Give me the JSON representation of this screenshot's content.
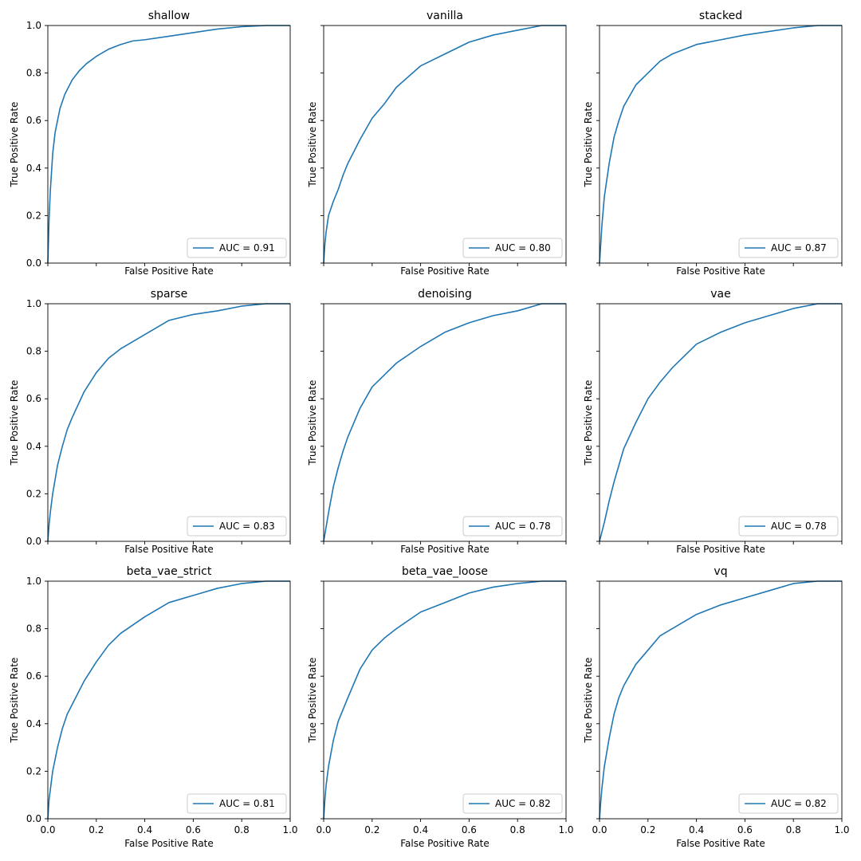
{
  "chart_data": [
    {
      "type": "line",
      "title": "shallow",
      "xlabel": "False Positive Rate",
      "ylabel": "True Positive Rate",
      "xlim": [
        0,
        1
      ],
      "ylim": [
        0,
        1
      ],
      "grid": false,
      "legend_position": "lower-right",
      "series": [
        {
          "name": "AUC = 0.91",
          "color": "#1f77b4",
          "x": [
            0,
            0.005,
            0.01,
            0.02,
            0.03,
            0.05,
            0.07,
            0.1,
            0.13,
            0.16,
            0.2,
            0.25,
            0.3,
            0.35,
            0.4,
            0.5,
            0.6,
            0.7,
            0.8,
            0.9,
            1.0
          ],
          "y": [
            0,
            0.18,
            0.3,
            0.46,
            0.55,
            0.65,
            0.71,
            0.77,
            0.81,
            0.84,
            0.87,
            0.9,
            0.92,
            0.935,
            0.94,
            0.955,
            0.97,
            0.985,
            0.995,
            1.0,
            1.0
          ]
        }
      ]
    },
    {
      "type": "line",
      "title": "vanilla",
      "xlabel": "False Positive Rate",
      "ylabel": "True Positive Rate",
      "xlim": [
        0,
        1
      ],
      "ylim": [
        0,
        1
      ],
      "grid": false,
      "legend_position": "lower-right",
      "series": [
        {
          "name": "AUC = 0.80",
          "color": "#1f77b4",
          "x": [
            0,
            0.005,
            0.01,
            0.02,
            0.04,
            0.06,
            0.08,
            0.1,
            0.15,
            0.2,
            0.25,
            0.3,
            0.4,
            0.5,
            0.6,
            0.7,
            0.8,
            0.9,
            1.0
          ],
          "y": [
            0,
            0.08,
            0.13,
            0.2,
            0.26,
            0.31,
            0.37,
            0.42,
            0.52,
            0.61,
            0.67,
            0.74,
            0.83,
            0.88,
            0.93,
            0.96,
            0.98,
            1.0,
            1.0
          ]
        }
      ]
    },
    {
      "type": "line",
      "title": "stacked",
      "xlabel": "False Positive Rate",
      "ylabel": "True Positive Rate",
      "xlim": [
        0,
        1
      ],
      "ylim": [
        0,
        1
      ],
      "grid": false,
      "legend_position": "lower-right",
      "series": [
        {
          "name": "AUC = 0.87",
          "color": "#1f77b4",
          "x": [
            0,
            0.005,
            0.01,
            0.02,
            0.04,
            0.06,
            0.08,
            0.1,
            0.15,
            0.2,
            0.25,
            0.3,
            0.4,
            0.5,
            0.6,
            0.7,
            0.8,
            0.9,
            1.0
          ],
          "y": [
            0,
            0.08,
            0.16,
            0.28,
            0.42,
            0.53,
            0.6,
            0.66,
            0.75,
            0.8,
            0.85,
            0.88,
            0.92,
            0.94,
            0.96,
            0.975,
            0.99,
            1.0,
            1.0
          ]
        }
      ]
    },
    {
      "type": "line",
      "title": "sparse",
      "xlabel": "False Positive Rate",
      "ylabel": "True Positive Rate",
      "xlim": [
        0,
        1
      ],
      "ylim": [
        0,
        1
      ],
      "grid": false,
      "legend_position": "lower-right",
      "series": [
        {
          "name": "AUC = 0.83",
          "color": "#1f77b4",
          "x": [
            0,
            0.005,
            0.01,
            0.02,
            0.04,
            0.06,
            0.08,
            0.1,
            0.15,
            0.2,
            0.25,
            0.3,
            0.4,
            0.5,
            0.6,
            0.7,
            0.8,
            0.9,
            1.0
          ],
          "y": [
            0,
            0.07,
            0.12,
            0.2,
            0.32,
            0.4,
            0.47,
            0.52,
            0.63,
            0.71,
            0.77,
            0.81,
            0.87,
            0.93,
            0.955,
            0.97,
            0.99,
            1.0,
            1.0
          ]
        }
      ]
    },
    {
      "type": "line",
      "title": "denoising",
      "xlabel": "False Positive Rate",
      "ylabel": "True Positive Rate",
      "xlim": [
        0,
        1
      ],
      "ylim": [
        0,
        1
      ],
      "grid": false,
      "legend_position": "lower-right",
      "series": [
        {
          "name": "AUC = 0.78",
          "color": "#1f77b4",
          "x": [
            0,
            0.005,
            0.01,
            0.02,
            0.04,
            0.06,
            0.08,
            0.1,
            0.15,
            0.2,
            0.25,
            0.3,
            0.4,
            0.5,
            0.6,
            0.7,
            0.8,
            0.9,
            1.0
          ],
          "y": [
            0,
            0.03,
            0.06,
            0.12,
            0.23,
            0.31,
            0.38,
            0.44,
            0.56,
            0.65,
            0.7,
            0.75,
            0.82,
            0.88,
            0.92,
            0.95,
            0.97,
            1.0,
            1.0
          ]
        }
      ]
    },
    {
      "type": "line",
      "title": "vae",
      "xlabel": "False Positive Rate",
      "ylabel": "True Positive Rate",
      "xlim": [
        0,
        1
      ],
      "ylim": [
        0,
        1
      ],
      "grid": false,
      "legend_position": "lower-right",
      "series": [
        {
          "name": "AUC = 0.78",
          "color": "#1f77b4",
          "x": [
            0,
            0.01,
            0.02,
            0.04,
            0.06,
            0.08,
            0.1,
            0.15,
            0.2,
            0.25,
            0.3,
            0.35,
            0.4,
            0.5,
            0.6,
            0.7,
            0.8,
            0.9,
            1.0
          ],
          "y": [
            0,
            0.04,
            0.08,
            0.17,
            0.25,
            0.32,
            0.39,
            0.5,
            0.6,
            0.67,
            0.73,
            0.78,
            0.83,
            0.88,
            0.92,
            0.95,
            0.98,
            1.0,
            1.0
          ]
        }
      ]
    },
    {
      "type": "line",
      "title": "beta_vae_strict",
      "xlabel": "False Positive Rate",
      "ylabel": "True Positive Rate",
      "xlim": [
        0,
        1
      ],
      "ylim": [
        0,
        1
      ],
      "grid": false,
      "legend_position": "lower-right",
      "series": [
        {
          "name": "AUC = 0.81",
          "color": "#1f77b4",
          "x": [
            0,
            0.005,
            0.01,
            0.02,
            0.04,
            0.06,
            0.08,
            0.1,
            0.15,
            0.2,
            0.25,
            0.3,
            0.4,
            0.5,
            0.6,
            0.7,
            0.8,
            0.9,
            1.0
          ],
          "y": [
            0,
            0.08,
            0.12,
            0.2,
            0.3,
            0.38,
            0.44,
            0.48,
            0.58,
            0.66,
            0.73,
            0.78,
            0.85,
            0.91,
            0.94,
            0.97,
            0.99,
            1.0,
            1.0
          ]
        }
      ]
    },
    {
      "type": "line",
      "title": "beta_vae_loose",
      "xlabel": "False Positive Rate",
      "ylabel": "True Positive Rate",
      "xlim": [
        0,
        1
      ],
      "ylim": [
        0,
        1
      ],
      "grid": false,
      "legend_position": "lower-right",
      "series": [
        {
          "name": "AUC = 0.82",
          "color": "#1f77b4",
          "x": [
            0,
            0.005,
            0.01,
            0.02,
            0.04,
            0.06,
            0.08,
            0.1,
            0.15,
            0.2,
            0.25,
            0.3,
            0.4,
            0.5,
            0.6,
            0.7,
            0.8,
            0.9,
            1.0
          ],
          "y": [
            0,
            0.08,
            0.14,
            0.22,
            0.33,
            0.41,
            0.46,
            0.51,
            0.63,
            0.71,
            0.76,
            0.8,
            0.87,
            0.91,
            0.95,
            0.975,
            0.99,
            1.0,
            1.0
          ]
        }
      ]
    },
    {
      "type": "line",
      "title": "vq",
      "xlabel": "False Positive Rate",
      "ylabel": "True Positive Rate",
      "xlim": [
        0,
        1
      ],
      "ylim": [
        0,
        1
      ],
      "grid": false,
      "legend_position": "lower-right",
      "series": [
        {
          "name": "AUC = 0.82",
          "color": "#1f77b4",
          "x": [
            0,
            0.005,
            0.01,
            0.02,
            0.04,
            0.06,
            0.08,
            0.1,
            0.15,
            0.2,
            0.25,
            0.3,
            0.4,
            0.5,
            0.6,
            0.7,
            0.8,
            0.9,
            1.0
          ],
          "y": [
            0,
            0.07,
            0.13,
            0.22,
            0.34,
            0.44,
            0.51,
            0.56,
            0.65,
            0.71,
            0.77,
            0.8,
            0.86,
            0.9,
            0.93,
            0.96,
            0.99,
            1.0,
            1.0
          ]
        }
      ]
    }
  ],
  "ticks": {
    "x": [
      "0.0",
      "0.2",
      "0.4",
      "0.6",
      "0.8",
      "1.0"
    ],
    "y": [
      "0.0",
      "0.2",
      "0.4",
      "0.6",
      "0.8",
      "1.0"
    ]
  }
}
